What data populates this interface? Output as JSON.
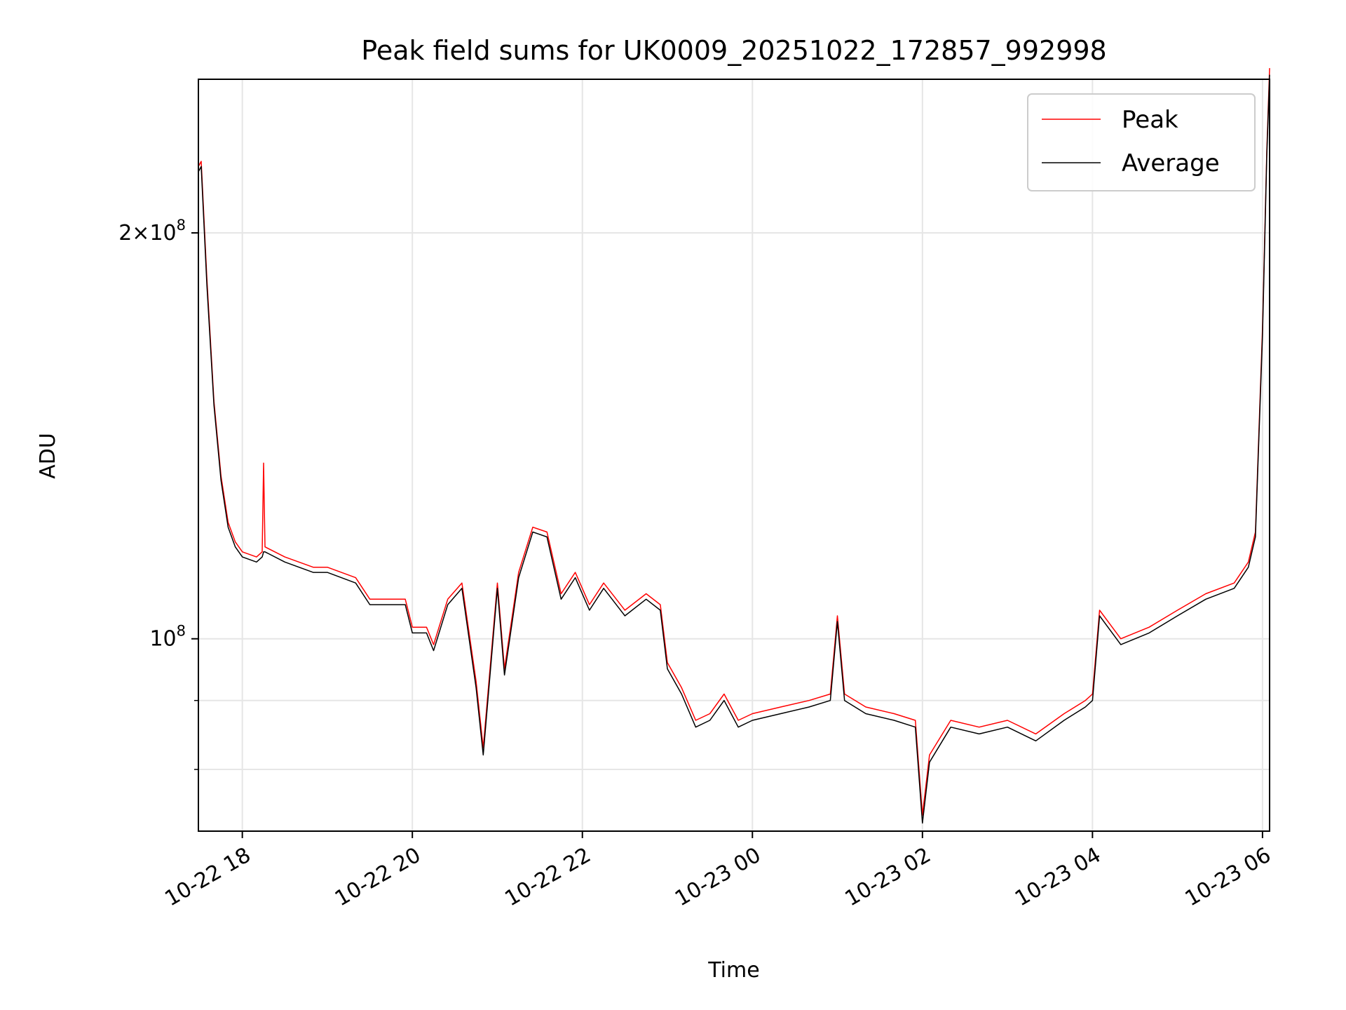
{
  "chart_data": {
    "type": "line",
    "title": "Peak field sums for UK0009_20251022_172857_992998",
    "xlabel": "Time",
    "ylabel": "ADU",
    "yscale": "log",
    "xlim": [
      "2025-10-22 17:29",
      "2025-10-23 06:05"
    ],
    "ylim": [
      72000000,
      260000000
    ],
    "x_ticks": [
      "2025-10-22 18:00",
      "2025-10-22 20:00",
      "2025-10-22 22:00",
      "2025-10-23 00:00",
      "2025-10-23 02:00",
      "2025-10-23 04:00",
      "2025-10-23 06:00"
    ],
    "x_tick_labels": [
      "10-22 18",
      "10-22 20",
      "10-22 22",
      "10-23 00",
      "10-23 02",
      "10-23 04",
      "10-23 06"
    ],
    "y_major_ticks": [
      100000000,
      200000000
    ],
    "y_major_tick_labels": [
      [
        "10",
        "8"
      ],
      [
        "2×10",
        "8"
      ]
    ],
    "y_minor_ticks": [
      80000000,
      90000000
    ],
    "grid": true,
    "legend": "top-right",
    "series": [
      {
        "name": "Peak",
        "color": "#ff0000",
        "x": [
          "2025-10-22 17:29",
          "2025-10-22 17:31",
          "2025-10-22 17:35",
          "2025-10-22 17:40",
          "2025-10-22 17:45",
          "2025-10-22 17:50",
          "2025-10-22 17:55",
          "2025-10-22 18:00",
          "2025-10-22 18:10",
          "2025-10-22 18:14",
          "2025-10-22 18:15",
          "2025-10-22 18:16",
          "2025-10-22 18:30",
          "2025-10-22 18:50",
          "2025-10-22 19:00",
          "2025-10-22 19:20",
          "2025-10-22 19:30",
          "2025-10-22 19:45",
          "2025-10-22 19:55",
          "2025-10-22 20:00",
          "2025-10-22 20:10",
          "2025-10-22 20:15",
          "2025-10-22 20:25",
          "2025-10-22 20:35",
          "2025-10-22 20:45",
          "2025-10-22 20:50",
          "2025-10-22 21:00",
          "2025-10-22 21:05",
          "2025-10-22 21:15",
          "2025-10-22 21:25",
          "2025-10-22 21:35",
          "2025-10-22 21:45",
          "2025-10-22 21:55",
          "2025-10-22 22:05",
          "2025-10-22 22:15",
          "2025-10-22 22:30",
          "2025-10-22 22:45",
          "2025-10-22 22:55",
          "2025-10-22 23:00",
          "2025-10-22 23:10",
          "2025-10-22 23:20",
          "2025-10-22 23:30",
          "2025-10-22 23:40",
          "2025-10-22 23:50",
          "2025-10-23 00:00",
          "2025-10-23 00:20",
          "2025-10-23 00:40",
          "2025-10-23 00:55",
          "2025-10-23 01:00",
          "2025-10-23 01:05",
          "2025-10-23 01:20",
          "2025-10-23 01:40",
          "2025-10-23 01:55",
          "2025-10-23 02:00",
          "2025-10-23 02:05",
          "2025-10-23 02:20",
          "2025-10-23 02:40",
          "2025-10-23 03:00",
          "2025-10-23 03:20",
          "2025-10-23 03:40",
          "2025-10-23 03:55",
          "2025-10-23 04:00",
          "2025-10-23 04:05",
          "2025-10-23 04:20",
          "2025-10-23 04:40",
          "2025-10-23 05:00",
          "2025-10-23 05:20",
          "2025-10-23 05:40",
          "2025-10-23 05:50",
          "2025-10-23 05:55",
          "2025-10-23 06:00",
          "2025-10-23 06:03",
          "2025-10-23 06:05"
        ],
        "y": [
          224000000,
          226000000,
          185000000,
          150000000,
          132000000,
          122000000,
          118000000,
          116000000,
          115000000,
          116000000,
          135000000,
          117000000,
          115000000,
          113000000,
          113000000,
          111000000,
          107000000,
          107000000,
          107000000,
          102000000,
          102000000,
          99000000,
          107000000,
          110000000,
          93000000,
          83000000,
          110000000,
          95000000,
          112000000,
          121000000,
          120000000,
          108000000,
          112000000,
          106000000,
          110000000,
          105000000,
          108000000,
          106000000,
          96000000,
          92000000,
          87000000,
          88000000,
          91000000,
          87000000,
          88000000,
          89000000,
          90000000,
          91000000,
          104000000,
          91000000,
          89000000,
          88000000,
          87000000,
          74000000,
          82000000,
          87000000,
          86000000,
          87000000,
          85000000,
          88000000,
          90000000,
          91000000,
          105000000,
          100000000,
          102000000,
          105000000,
          108000000,
          110000000,
          114000000,
          120000000,
          170000000,
          230000000,
          265000000
        ]
      },
      {
        "name": "Average",
        "color": "#000000",
        "x": [
          "2025-10-22 17:29",
          "2025-10-22 17:31",
          "2025-10-22 17:35",
          "2025-10-22 17:40",
          "2025-10-22 17:45",
          "2025-10-22 17:50",
          "2025-10-22 17:55",
          "2025-10-22 18:00",
          "2025-10-22 18:10",
          "2025-10-22 18:14",
          "2025-10-22 18:15",
          "2025-10-22 18:16",
          "2025-10-22 18:30",
          "2025-10-22 18:50",
          "2025-10-22 19:00",
          "2025-10-22 19:20",
          "2025-10-22 19:30",
          "2025-10-22 19:45",
          "2025-10-22 19:55",
          "2025-10-22 20:00",
          "2025-10-22 20:10",
          "2025-10-22 20:15",
          "2025-10-22 20:25",
          "2025-10-22 20:35",
          "2025-10-22 20:45",
          "2025-10-22 20:50",
          "2025-10-22 21:00",
          "2025-10-22 21:05",
          "2025-10-22 21:15",
          "2025-10-22 21:25",
          "2025-10-22 21:35",
          "2025-10-22 21:45",
          "2025-10-22 21:55",
          "2025-10-22 22:05",
          "2025-10-22 22:15",
          "2025-10-22 22:30",
          "2025-10-22 22:45",
          "2025-10-22 22:55",
          "2025-10-22 23:00",
          "2025-10-22 23:10",
          "2025-10-22 23:20",
          "2025-10-22 23:30",
          "2025-10-22 23:40",
          "2025-10-22 23:50",
          "2025-10-23 00:00",
          "2025-10-23 00:20",
          "2025-10-23 00:40",
          "2025-10-23 00:55",
          "2025-10-23 01:00",
          "2025-10-23 01:05",
          "2025-10-23 01:20",
          "2025-10-23 01:40",
          "2025-10-23 01:55",
          "2025-10-23 02:00",
          "2025-10-23 02:05",
          "2025-10-23 02:20",
          "2025-10-23 02:40",
          "2025-10-23 03:00",
          "2025-10-23 03:20",
          "2025-10-23 03:40",
          "2025-10-23 03:55",
          "2025-10-23 04:00",
          "2025-10-23 04:05",
          "2025-10-23 04:20",
          "2025-10-23 04:40",
          "2025-10-23 05:00",
          "2025-10-23 05:20",
          "2025-10-23 05:40",
          "2025-10-23 05:50",
          "2025-10-23 05:55",
          "2025-10-23 06:00",
          "2025-10-23 06:03",
          "2025-10-23 06:05"
        ],
        "y": [
          222000000,
          224000000,
          183000000,
          149000000,
          131000000,
          121000000,
          117000000,
          115000000,
          114000000,
          115000000,
          116000000,
          116000000,
          114000000,
          112000000,
          112000000,
          110000000,
          106000000,
          106000000,
          106000000,
          101000000,
          101000000,
          98000000,
          106000000,
          109000000,
          92000000,
          82000000,
          109000000,
          94000000,
          111000000,
          120000000,
          119000000,
          107000000,
          111000000,
          105000000,
          109000000,
          104000000,
          107000000,
          105000000,
          95000000,
          91000000,
          86000000,
          87000000,
          90000000,
          86000000,
          87000000,
          88000000,
          89000000,
          90000000,
          103000000,
          90000000,
          88000000,
          87000000,
          86000000,
          73000000,
          81000000,
          86000000,
          85000000,
          86000000,
          84000000,
          87000000,
          89000000,
          90000000,
          104000000,
          99000000,
          101000000,
          104000000,
          107000000,
          109000000,
          113000000,
          119000000,
          168000000,
          228000000,
          262000000
        ]
      }
    ]
  }
}
